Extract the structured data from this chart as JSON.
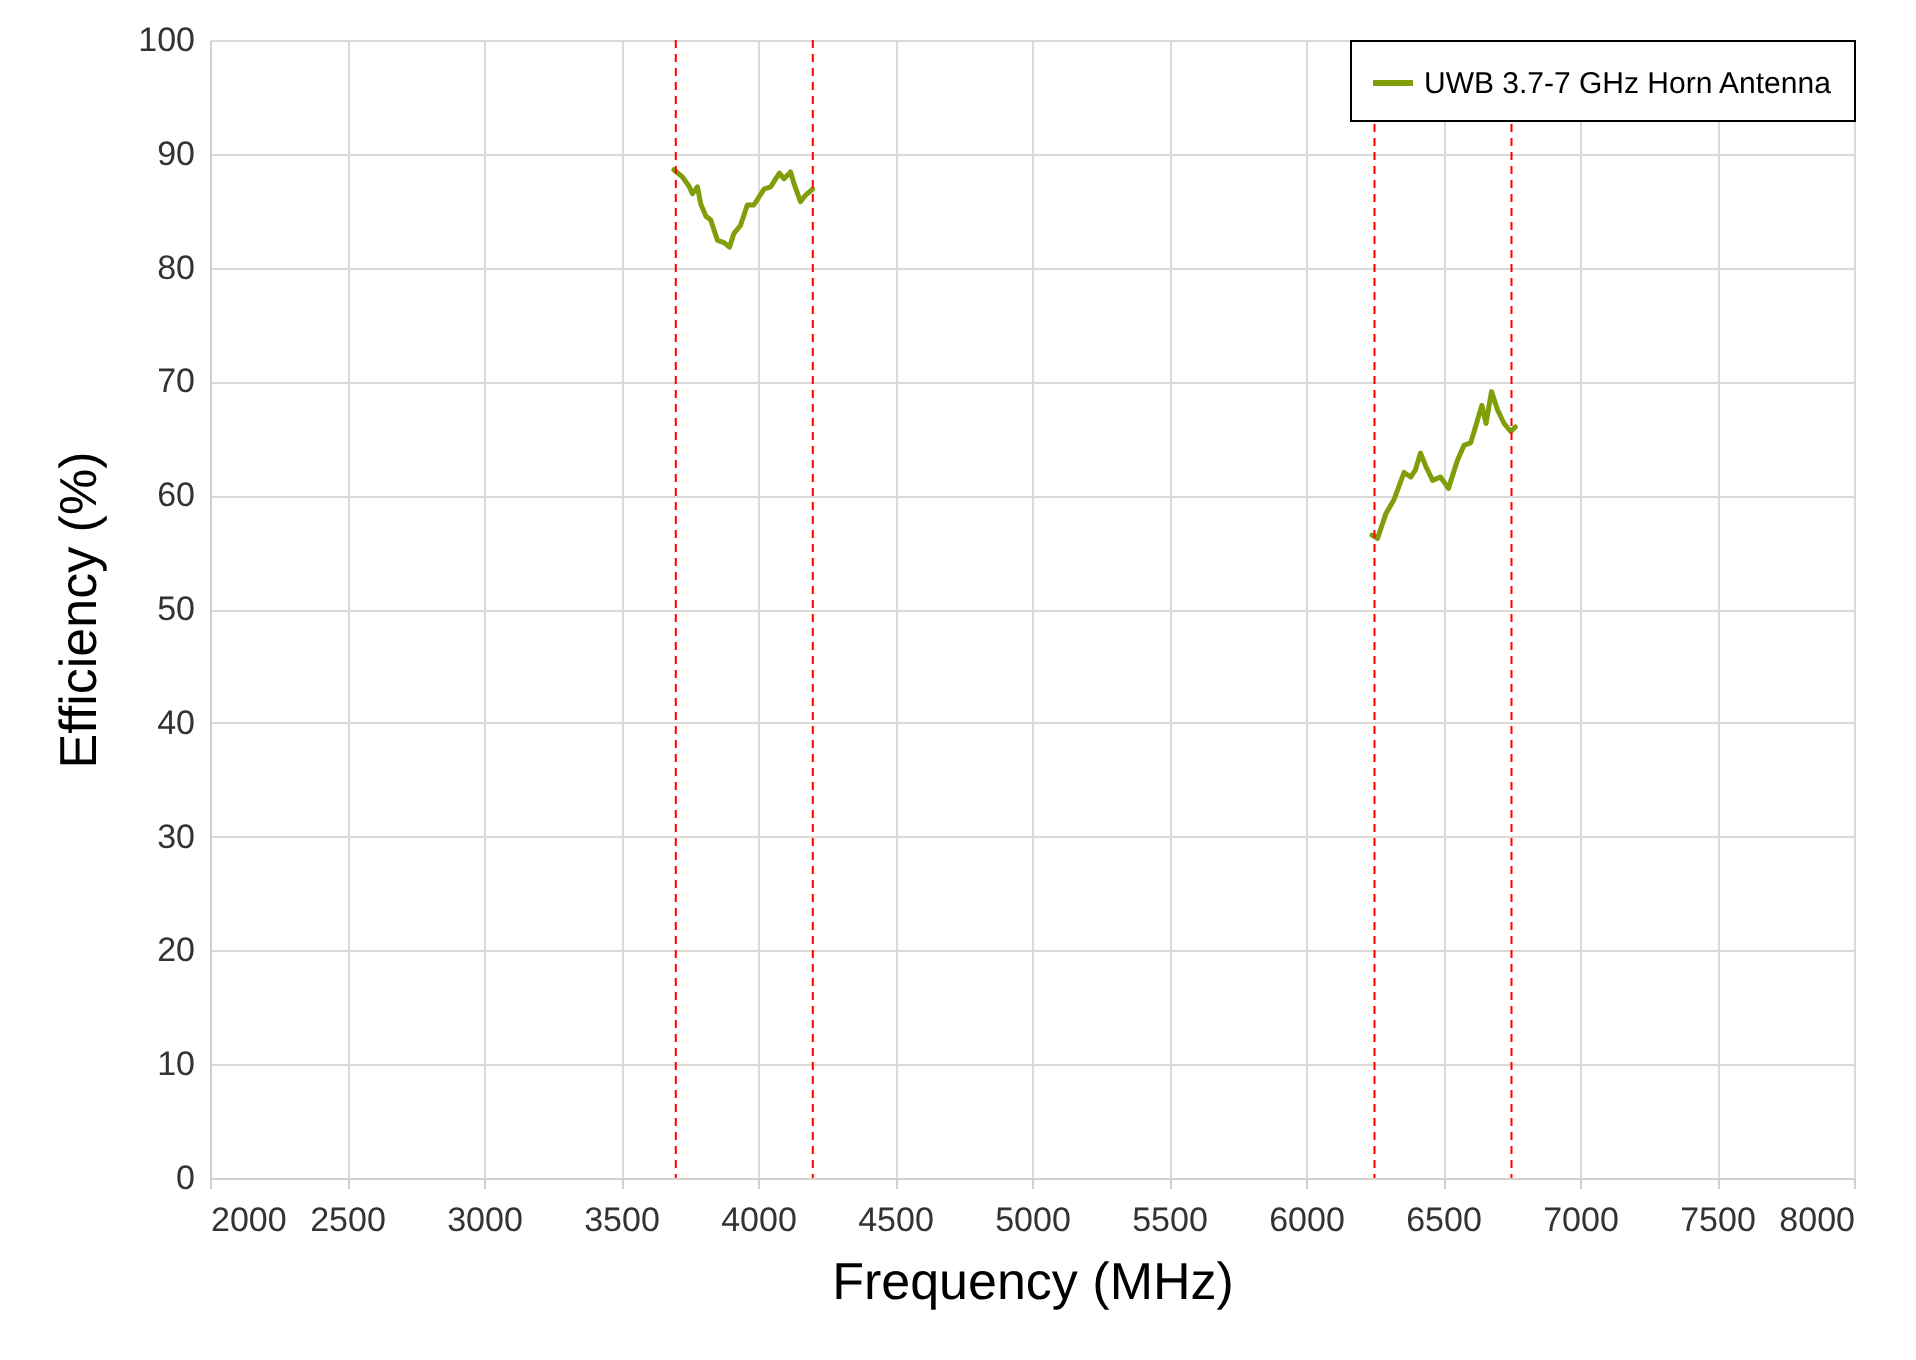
{
  "chart_data": {
    "type": "line",
    "xlabel": "Frequency (MHz)",
    "ylabel": "Efficiency (%)",
    "xlim": [
      2000,
      8000
    ],
    "xticks": [
      2000,
      2500,
      3000,
      3500,
      4000,
      4500,
      5000,
      5500,
      6000,
      6500,
      7000,
      7500,
      8000
    ],
    "ylim": [
      0,
      100
    ],
    "yticks": [
      0,
      10,
      20,
      30,
      40,
      50,
      60,
      70,
      80,
      90,
      100
    ],
    "grid": true,
    "legend": "top right",
    "line_style": "solid",
    "series": [
      {
        "name": "UWB 3.7-7 GHz Horn Antenna",
        "color": "#7f9e0a",
        "x": [
          3693,
          3723,
          3747,
          3761,
          3779,
          3791,
          3810,
          3827,
          3852,
          3876,
          3896,
          3912,
          3936,
          3961,
          3985,
          4022,
          4046,
          4078,
          4095,
          4119,
          4131,
          4155,
          4175,
          4199,
          5200,
          6241,
          6261,
          6292,
          6321,
          6358,
          6382,
          6399,
          6418,
          6438,
          6462,
          6491,
          6520,
          6553,
          6577,
          6601,
          6626,
          6642,
          6657,
          6677,
          6699,
          6723,
          6747,
          6764
        ],
        "values": [
          88.6,
          88.0,
          87.2,
          86.5,
          87.1,
          85.6,
          84.5,
          84.2,
          82.4,
          82.2,
          81.8,
          83.0,
          83.7,
          85.5,
          85.5,
          86.9,
          87.1,
          88.3,
          87.8,
          88.4,
          87.4,
          85.8,
          86.4,
          86.9,
          null,
          56.5,
          56.2,
          58.4,
          59.6,
          62.0,
          61.6,
          62.2,
          63.7,
          62.5,
          61.3,
          61.6,
          60.6,
          63.1,
          64.4,
          64.6,
          66.6,
          67.9,
          66.3,
          69.1,
          67.5,
          66.3,
          65.6,
          66.0
        ]
      }
    ],
    "ref_lines": [
      {
        "axis": "x",
        "value": 3700,
        "color": "#ff0000",
        "line_style": "dashed"
      },
      {
        "axis": "x",
        "value": 4200,
        "color": "#ff0000",
        "line_style": "dashed"
      },
      {
        "axis": "x",
        "value": 6250,
        "color": "#ff0000",
        "line_style": "dashed"
      },
      {
        "axis": "x",
        "value": 6750,
        "color": "#ff0000",
        "line_style": "dashed"
      }
    ]
  }
}
